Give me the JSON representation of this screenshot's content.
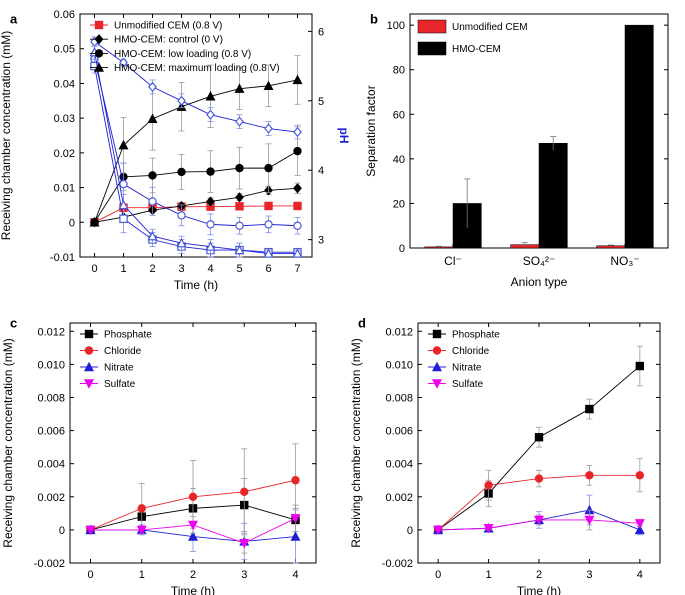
{
  "colors": {
    "black": "#000000",
    "red": "#e8262a",
    "blue": "#1f1fd6",
    "blue_marker": "#4a5bd8",
    "magenta": "#ee00ee",
    "grey_err": "#888888",
    "axis": "#000000"
  },
  "chart_data": [
    {
      "panel": "a",
      "type": "line",
      "xlabel": "Time (h)",
      "ylabel": "Receiving chamber concentration (mM)",
      "y2label": "pH",
      "xlim": [
        -0.5,
        7.5
      ],
      "ylim": [
        -0.01,
        0.06
      ],
      "y2lim": [
        2.75,
        6.25
      ],
      "x_ticks": [
        0,
        1,
        2,
        3,
        4,
        5,
        6,
        7
      ],
      "y_ticks": [
        -0.01,
        0,
        0.01,
        0.02,
        0.03,
        0.04,
        0.05,
        0.06
      ],
      "y_tick_labels": [
        "-0.01",
        "0",
        "0.01",
        "0.02",
        "0.03",
        "0.04",
        "0.05",
        "0.06"
      ],
      "y2_ticks": [
        3,
        4,
        5,
        6
      ],
      "legend_position": "top-left",
      "series": [
        {
          "name": "Unmodified CEM (0.8 V)",
          "marker": "square",
          "color": "red",
          "axis": "left",
          "x": [
            0,
            1,
            2,
            3,
            4,
            5,
            6,
            7
          ],
          "y": [
            0,
            0.0042,
            0.0042,
            0.0045,
            0.0045,
            0.0046,
            0.0047,
            0.0047
          ],
          "err": [
            0,
            0.0005,
            0.0005,
            0.0005,
            0.0005,
            0.0005,
            0.0005,
            0.0005
          ]
        },
        {
          "name": "HMO-CEM: control (0 V)",
          "marker": "diamond",
          "color": "black",
          "axis": "left",
          "x": [
            0,
            1,
            2,
            3,
            4,
            5,
            6,
            7
          ],
          "y": [
            0,
            0.0015,
            0.0035,
            0.0047,
            0.006,
            0.0072,
            0.0092,
            0.0098
          ],
          "err": [
            0,
            0.0005,
            0.0008,
            0.001,
            0.001,
            0.001,
            0.0012,
            0.0015
          ]
        },
        {
          "name": "HMO-CEM: low loading (0.8 V)",
          "marker": "circle",
          "color": "black",
          "axis": "left",
          "x": [
            0,
            1,
            2,
            3,
            4,
            5,
            6,
            7
          ],
          "y": [
            0,
            0.0131,
            0.0135,
            0.0145,
            0.0146,
            0.0156,
            0.0156,
            0.0205
          ],
          "err": [
            0,
            0.004,
            0.005,
            0.005,
            0.006,
            0.006,
            0.007,
            0.007
          ]
        },
        {
          "name": "HMO-CEM: maximum loading (0.8 V)",
          "marker": "triangle",
          "color": "black",
          "axis": "left",
          "x": [
            0,
            1,
            2,
            3,
            4,
            5,
            6,
            7
          ],
          "y": [
            0,
            0.0222,
            0.0298,
            0.0333,
            0.0363,
            0.0385,
            0.0393,
            0.041
          ],
          "err": [
            0,
            0.008,
            0.009,
            0.007,
            0.009,
            0.006,
            0.006,
            0.007
          ]
        },
        {
          "name": "",
          "marker": "diamond-open",
          "color": "blue",
          "axis": "right",
          "x": [
            0,
            1,
            2,
            3,
            4,
            5,
            6,
            7
          ],
          "y": [
            5.85,
            5.55,
            5.2,
            5.0,
            4.8,
            4.7,
            4.6,
            4.55
          ],
          "err": [
            0.07,
            0.05,
            0.1,
            0.1,
            0.1,
            0.1,
            0.1,
            0.1
          ]
        },
        {
          "name": "",
          "marker": "circle-open",
          "color": "blue",
          "axis": "right",
          "x": [
            0,
            1,
            2,
            3,
            4,
            5,
            6,
            7
          ],
          "y": [
            5.6,
            3.8,
            3.55,
            3.35,
            3.22,
            3.2,
            3.22,
            3.2
          ],
          "err": [
            0.1,
            0.3,
            0.2,
            0.15,
            0.15,
            0.12,
            0.12,
            0.12
          ]
        },
        {
          "name": "",
          "marker": "square-open",
          "color": "blue",
          "axis": "right",
          "x": [
            0,
            1,
            2,
            3,
            4,
            5,
            6,
            7
          ],
          "y": [
            5.5,
            3.3,
            3.0,
            2.9,
            2.85,
            2.85,
            2.82,
            2.82
          ],
          "err": [
            0.1,
            0.2,
            0.1,
            0.1,
            0.1,
            0.1,
            0.05,
            0.05
          ]
        },
        {
          "name": "",
          "marker": "triangle-open",
          "color": "blue",
          "axis": "right",
          "x": [
            0,
            1,
            2,
            3,
            4,
            5,
            6,
            7
          ],
          "y": [
            5.7,
            3.5,
            3.05,
            2.95,
            2.9,
            2.85,
            2.8,
            2.8
          ],
          "err": [
            0.1,
            0.15,
            0.1,
            0.1,
            0.1,
            0.1,
            0.05,
            0.05
          ]
        }
      ]
    },
    {
      "panel": "b",
      "type": "bar",
      "xlabel": "Anion type",
      "ylabel": "Separation factor",
      "ylim": [
        0,
        105
      ],
      "y_ticks": [
        0,
        20,
        40,
        60,
        80,
        100
      ],
      "categories": [
        "Cl⁻",
        "SO₄²⁻",
        "NO₃⁻"
      ],
      "legend_position": "top-left",
      "series": [
        {
          "name": "Unmodified CEM",
          "color": "red",
          "values": [
            0.5,
            1.5,
            1.0
          ],
          "err": [
            0.3,
            1.0,
            0.3
          ]
        },
        {
          "name": "HMO-CEM",
          "color": "black",
          "values": [
            20,
            47,
            100
          ],
          "err": [
            11,
            3,
            0
          ]
        }
      ]
    },
    {
      "panel": "c",
      "type": "line",
      "xlabel": "Time (h)",
      "ylabel": "Receiving chamber concentration (mM)",
      "xlim": [
        -0.4,
        4.4
      ],
      "ylim": [
        -0.002,
        0.0125
      ],
      "x_ticks": [
        0,
        1,
        2,
        3,
        4
      ],
      "y_ticks": [
        -0.002,
        0,
        0.002,
        0.004,
        0.006,
        0.008,
        0.01,
        0.012
      ],
      "y_tick_labels": [
        "-0.002",
        "0",
        "0.002",
        "0.004",
        "0.006",
        "0.008",
        "0.010",
        "0.012"
      ],
      "legend_position": "top-left",
      "series": [
        {
          "name": "Phosphate",
          "marker": "square",
          "color": "black",
          "x": [
            0,
            1,
            2,
            3,
            4
          ],
          "y": [
            0,
            0.0008,
            0.0013,
            0.0015,
            0.0006
          ],
          "err": [
            0,
            0.0005,
            0.0012,
            0.0016,
            0.0007
          ]
        },
        {
          "name": "Chloride",
          "marker": "circle",
          "color": "red",
          "x": [
            0,
            1,
            2,
            3,
            4
          ],
          "y": [
            0,
            0.0013,
            0.002,
            0.0023,
            0.003
          ],
          "err": [
            0,
            0.0015,
            0.0022,
            0.0026,
            0.0022
          ]
        },
        {
          "name": "Nitrate",
          "marker": "triangle",
          "color": "blue",
          "x": [
            0,
            1,
            2,
            3,
            4
          ],
          "y": [
            0,
            0.0,
            -0.0004,
            -0.0007,
            -0.0004
          ],
          "err": [
            0,
            0.0003,
            0.0009,
            0.0011,
            0.0016
          ]
        },
        {
          "name": "Sulfate",
          "marker": "triangle-down",
          "color": "magenta",
          "x": [
            0,
            1,
            2,
            3,
            4
          ],
          "y": [
            0,
            0.0,
            0.0003,
            -0.0008,
            0.0007
          ],
          "err": [
            0,
            0.0002,
            0.0005,
            0.0006,
            0.0008
          ]
        }
      ]
    },
    {
      "panel": "d",
      "type": "line",
      "xlabel": "Time (h)",
      "ylabel": "Receiving chamber concentration (mM)",
      "xlim": [
        -0.4,
        4.4
      ],
      "ylim": [
        -0.002,
        0.0125
      ],
      "x_ticks": [
        0,
        1,
        2,
        3,
        4
      ],
      "y_ticks": [
        -0.002,
        0,
        0.002,
        0.004,
        0.006,
        0.008,
        0.01,
        0.012
      ],
      "y_tick_labels": [
        "-0.002",
        "0",
        "0.002",
        "0.004",
        "0.006",
        "0.008",
        "0.010",
        "0.012"
      ],
      "legend_position": "top-left",
      "series": [
        {
          "name": "Phosphate",
          "marker": "square",
          "color": "black",
          "x": [
            0,
            1,
            2,
            3,
            4
          ],
          "y": [
            0,
            0.0022,
            0.0056,
            0.0073,
            0.0099
          ],
          "err": [
            0,
            0.0008,
            0.0006,
            0.0006,
            0.0012
          ]
        },
        {
          "name": "Chloride",
          "marker": "circle",
          "color": "red",
          "x": [
            0,
            1,
            2,
            3,
            4
          ],
          "y": [
            0,
            0.0027,
            0.0031,
            0.0033,
            0.0033
          ],
          "err": [
            0,
            0.0009,
            0.0005,
            0.0006,
            0.001
          ]
        },
        {
          "name": "Nitrate",
          "marker": "triangle",
          "color": "blue",
          "x": [
            0,
            1,
            2,
            3,
            4
          ],
          "y": [
            0,
            0.0001,
            0.0006,
            0.0012,
            0.0
          ],
          "err": [
            0,
            0.0002,
            0.0005,
            0.0009,
            0.0003
          ]
        },
        {
          "name": "Sulfate",
          "marker": "triangle-down",
          "color": "magenta",
          "x": [
            0,
            1,
            2,
            3,
            4
          ],
          "y": [
            0,
            0.0001,
            0.0006,
            0.0006,
            0.0004
          ],
          "err": [
            0,
            0.0001,
            0.0003,
            0.0006,
            0.0002
          ]
        }
      ]
    }
  ]
}
